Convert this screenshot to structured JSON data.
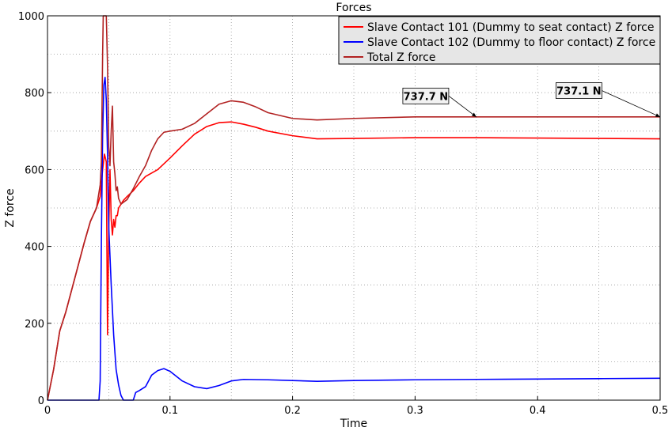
{
  "chart_data": {
    "type": "line",
    "title": "Forces",
    "xlabel": "Time",
    "ylabel": "Z force",
    "xlim": [
      0,
      0.5
    ],
    "ylim": [
      0,
      1000
    ],
    "x_ticks": [
      "0",
      "0.1",
      "0.2",
      "0.3",
      "0.4",
      "0.5"
    ],
    "y_ticks": [
      "0",
      "200",
      "400",
      "600",
      "800",
      "1000"
    ],
    "grid": true,
    "legend_position": "top-right",
    "series": [
      {
        "name": "Slave Contact 101 (Dummy to seat contact) Z force",
        "color": "#ff0000",
        "x": [
          0,
          0.005,
          0.01,
          0.015,
          0.02,
          0.025,
          0.03,
          0.035,
          0.04,
          0.043,
          0.045,
          0.0465,
          0.048,
          0.049,
          0.05,
          0.051,
          0.052,
          0.053,
          0.054,
          0.055,
          0.056,
          0.057,
          0.058,
          0.06,
          0.062,
          0.065,
          0.07,
          0.075,
          0.08,
          0.09,
          0.1,
          0.11,
          0.12,
          0.13,
          0.14,
          0.15,
          0.16,
          0.17,
          0.18,
          0.2,
          0.22,
          0.25,
          0.3,
          0.35,
          0.4,
          0.45,
          0.5
        ],
        "y": [
          0,
          80,
          180,
          230,
          290,
          350,
          410,
          465,
          500,
          530,
          600,
          640,
          620,
          170,
          440,
          600,
          470,
          430,
          470,
          450,
          480,
          480,
          500,
          510,
          520,
          530,
          545,
          565,
          582,
          600,
          630,
          662,
          692,
          712,
          722,
          724,
          718,
          710,
          700,
          688,
          680,
          681,
          683,
          683,
          682,
          681,
          680
        ]
      },
      {
        "name": "Slave Contact 102 (Dummy to floor contact) Z force",
        "color": "#0000ff",
        "x": [
          0,
          0.01,
          0.02,
          0.03,
          0.04,
          0.042,
          0.043,
          0.044,
          0.045,
          0.046,
          0.047,
          0.048,
          0.049,
          0.05,
          0.052,
          0.054,
          0.056,
          0.058,
          0.06,
          0.062,
          0.065,
          0.07,
          0.072,
          0.075,
          0.08,
          0.085,
          0.09,
          0.095,
          0.1,
          0.11,
          0.12,
          0.13,
          0.14,
          0.15,
          0.16,
          0.18,
          0.2,
          0.22,
          0.25,
          0.3,
          0.35,
          0.4,
          0.45,
          0.5
        ],
        "y": [
          0,
          0,
          0,
          0,
          0,
          0,
          50,
          420,
          690,
          820,
          840,
          780,
          640,
          450,
          300,
          170,
          80,
          40,
          12,
          0,
          0,
          0,
          20,
          25,
          35,
          65,
          77,
          82,
          75,
          50,
          35,
          30,
          38,
          50,
          54,
          53,
          51,
          49,
          51,
          53,
          54,
          55,
          56,
          57
        ]
      },
      {
        "name": "Total Z force",
        "color": "#b22222",
        "x": [
          0,
          0.005,
          0.01,
          0.015,
          0.02,
          0.025,
          0.03,
          0.035,
          0.04,
          0.043,
          0.044,
          0.045,
          0.0455,
          0.046,
          0.047,
          0.048,
          0.049,
          0.05,
          0.051,
          0.052,
          0.053,
          0.054,
          0.055,
          0.056,
          0.057,
          0.058,
          0.06,
          0.065,
          0.07,
          0.075,
          0.08,
          0.085,
          0.09,
          0.095,
          0.1,
          0.11,
          0.12,
          0.13,
          0.14,
          0.15,
          0.16,
          0.17,
          0.18,
          0.2,
          0.22,
          0.25,
          0.3,
          0.35,
          0.4,
          0.45,
          0.5
        ],
        "y": [
          0,
          80,
          180,
          230,
          290,
          350,
          410,
          465,
          500,
          560,
          620,
          900,
          1000,
          1000,
          1000,
          1000,
          870,
          660,
          610,
          700,
          765,
          620,
          590,
          545,
          555,
          525,
          510,
          522,
          550,
          582,
          610,
          650,
          680,
          697,
          700,
          705,
          720,
          745,
          770,
          779,
          775,
          763,
          748,
          733,
          729,
          733,
          737,
          737,
          737,
          737,
          737
        ]
      }
    ],
    "annotations": [
      {
        "text": "737.7 N",
        "label_x": 0.29,
        "label_y": 812,
        "target_x": 0.35,
        "target_y": 737
      },
      {
        "text": "737.1 N",
        "label_x": 0.415,
        "label_y": 826,
        "target_x": 0.5,
        "target_y": 737
      }
    ]
  }
}
